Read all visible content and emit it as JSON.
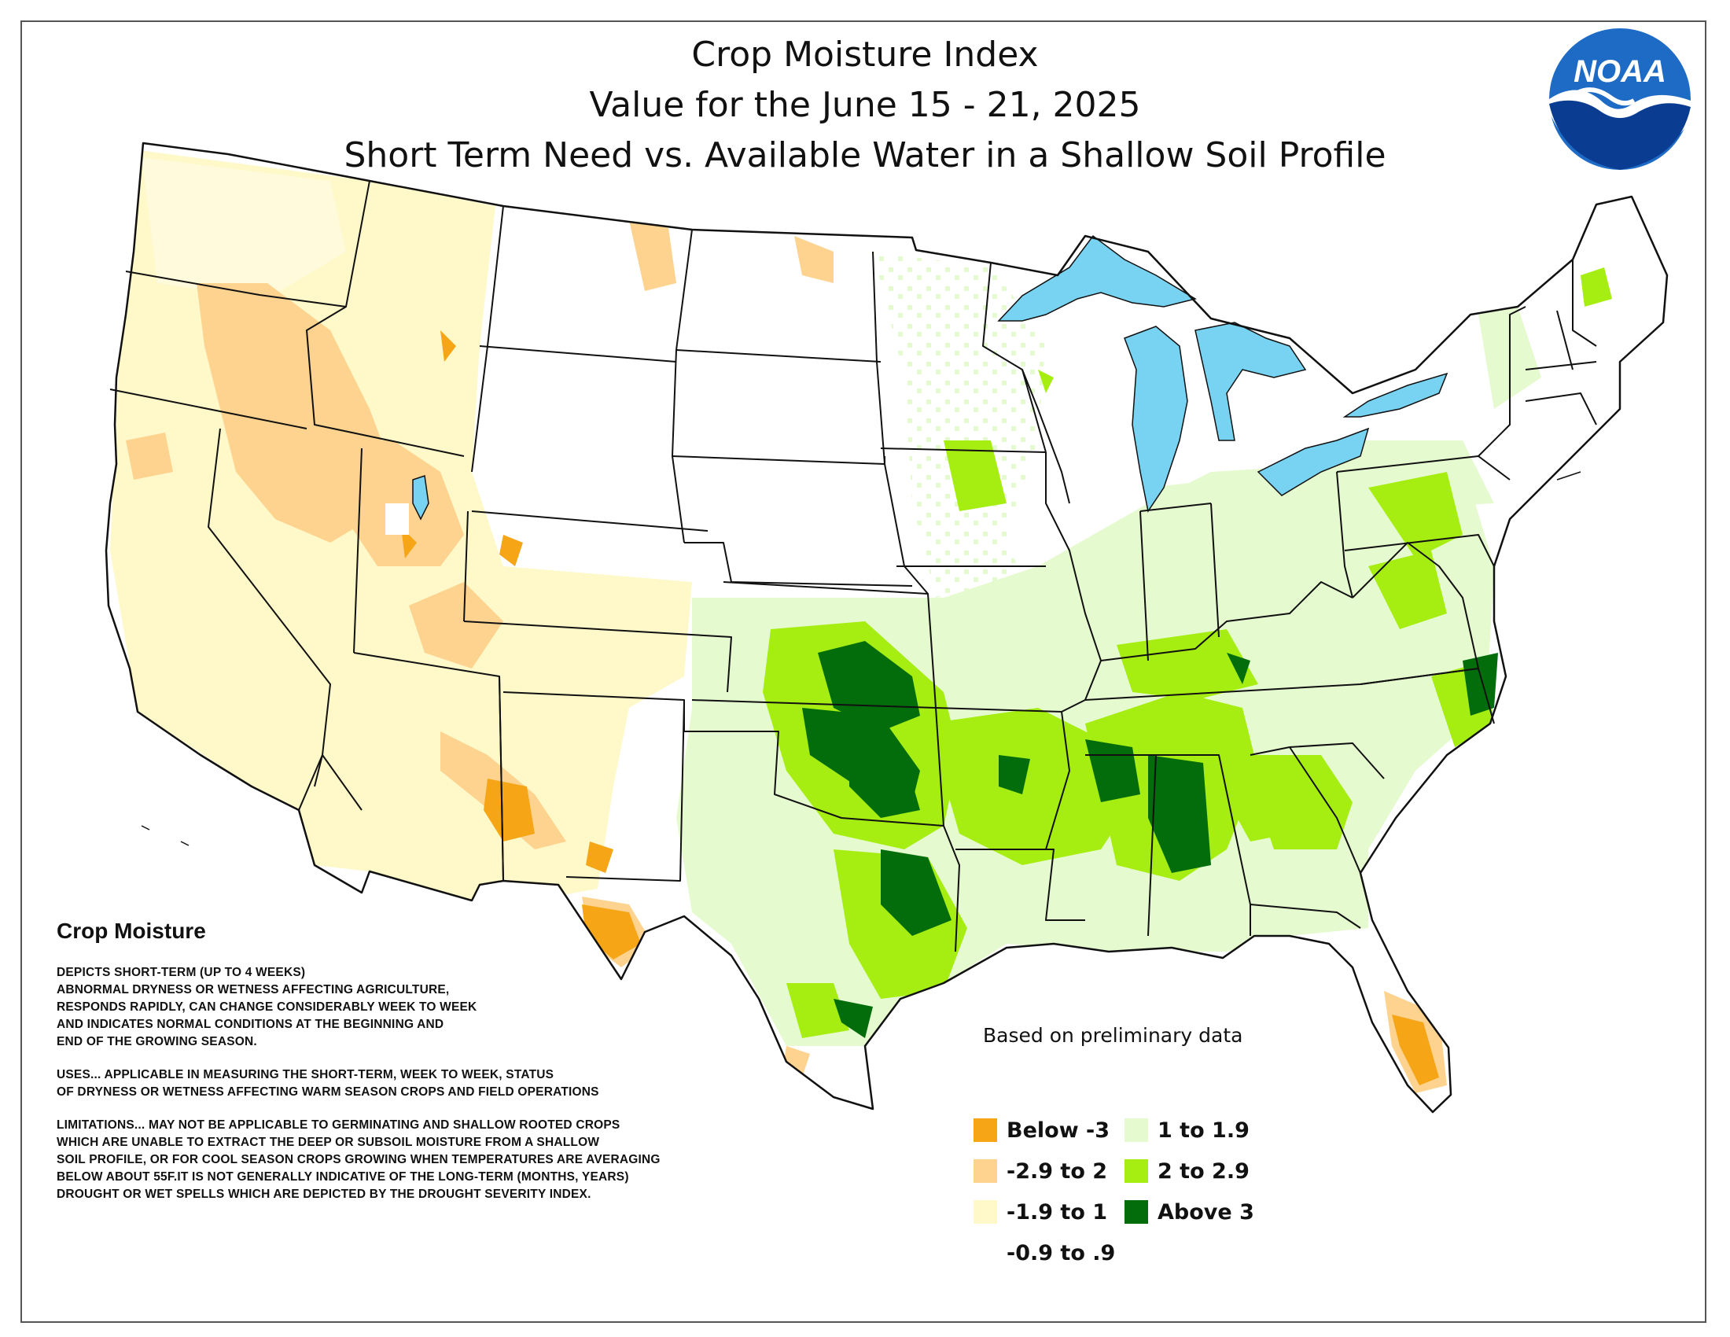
{
  "title": {
    "line1": "Crop Moisture Index",
    "line2": "Value for the June 15 - 21, 2025",
    "line3": "Short Term Need vs. Available Water in a Shallow Soil Profile"
  },
  "logo": {
    "text": "NOAA"
  },
  "note": "Based on preliminary data",
  "info": {
    "heading": "Crop Moisture",
    "depicts": "DEPICTS SHORT-TERM (UP TO 4 WEEKS)\nABNORMAL DRYNESS OR WETNESS AFFECTING AGRICULTURE,\nRESPONDS RAPIDLY, CAN CHANGE CONSIDERABLY WEEK TO WEEK\nAND INDICATES NORMAL CONDITIONS AT THE BEGINNING AND\nEND OF THE GROWING SEASON.",
    "uses": "USES... APPLICABLE IN MEASURING THE SHORT-TERM, WEEK TO WEEK, STATUS\nOF DRYNESS OR WETNESS AFFECTING WARM SEASON CROPS AND FIELD OPERATIONS",
    "limitations": "LIMITATIONS... MAY NOT BE APPLICABLE TO GERMINATING AND SHALLOW ROOTED CROPS\nWHICH ARE UNABLE TO EXTRACT THE DEEP OR SUBSOIL MOISTURE FROM A SHALLOW\nSOIL PROFILE, OR FOR COOL SEASON CROPS GROWING WHEN TEMPERATURES ARE AVERAGING\nBELOW ABOUT 55F.IT IS NOT GENERALLY INDICATIVE OF THE LONG-TERM (MONTHS, YEARS)\nDROUGHT OR WET SPELLS WHICH ARE DEPICTED BY THE DROUGHT SEVERITY INDEX."
  },
  "legend": [
    {
      "label": "Below -3",
      "color": "#f5a516"
    },
    {
      "label": "-2.9 to 2",
      "color": "#fdd38f"
    },
    {
      "label": "-1.9 to 1",
      "color": "#fff8c8"
    },
    {
      "label": "-0.9 to .9",
      "color": "#ffffff"
    },
    {
      "label": "1 to 1.9",
      "color": "#e6fad0"
    },
    {
      "label": "2 to 2.9",
      "color": "#a6ee12"
    },
    {
      "label": "Above 3",
      "color": "#036d0c"
    }
  ],
  "colors": {
    "water": "#77d3f1",
    "border": "#111111",
    "noaa_blue": "#1e6bc6",
    "noaa_dark": "#0a3d91"
  }
}
